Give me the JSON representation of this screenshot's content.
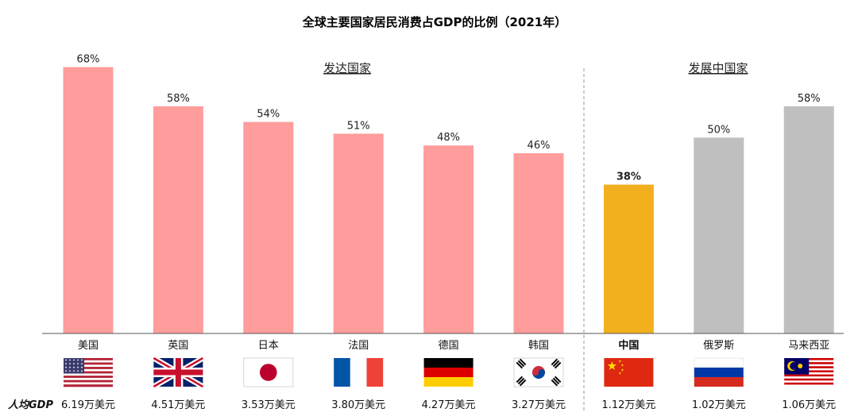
{
  "chart_data": {
    "type": "bar",
    "title": "全球主要国家居民消费占GDP的比例（2021年）",
    "categories": [
      "美国",
      "英国",
      "日本",
      "法国",
      "德国",
      "韩国",
      "中国",
      "俄罗斯",
      "马来西亚"
    ],
    "values": [
      68,
      58,
      54,
      51,
      48,
      46,
      38,
      50,
      58
    ],
    "value_labels": [
      "68%",
      "58%",
      "54%",
      "51%",
      "48%",
      "46%",
      "38%",
      "50%",
      "58%"
    ],
    "groups": [
      {
        "label": "发达国家",
        "members": [
          "美国",
          "英国",
          "日本",
          "法国",
          "德国",
          "韩国"
        ]
      },
      {
        "label": "发展中国家",
        "members": [
          "中国",
          "俄罗斯",
          "马来西亚"
        ]
      }
    ],
    "highlight": "中国",
    "ylim": [
      0,
      75
    ],
    "grid": false,
    "colors": {
      "developed": "#ff9c9c",
      "highlight": "#f2b01f",
      "developing": "#bfbfbf",
      "axis": "#555555",
      "separator": "#9a9a9a"
    },
    "gdp_per_capita": {
      "label": "人均GDP",
      "values": [
        "6.19万美元",
        "4.51万美元",
        "3.53万美元",
        "3.80万美元",
        "4.27万美元",
        "3.27万美元",
        "1.12万美元",
        "1.02万美元",
        "1.06万美元"
      ]
    },
    "flags": [
      "us-flag",
      "uk-flag",
      "japan-flag",
      "france-flag",
      "germany-flag",
      "korea-flag",
      "china-flag",
      "russia-flag",
      "malaysia-flag"
    ]
  }
}
